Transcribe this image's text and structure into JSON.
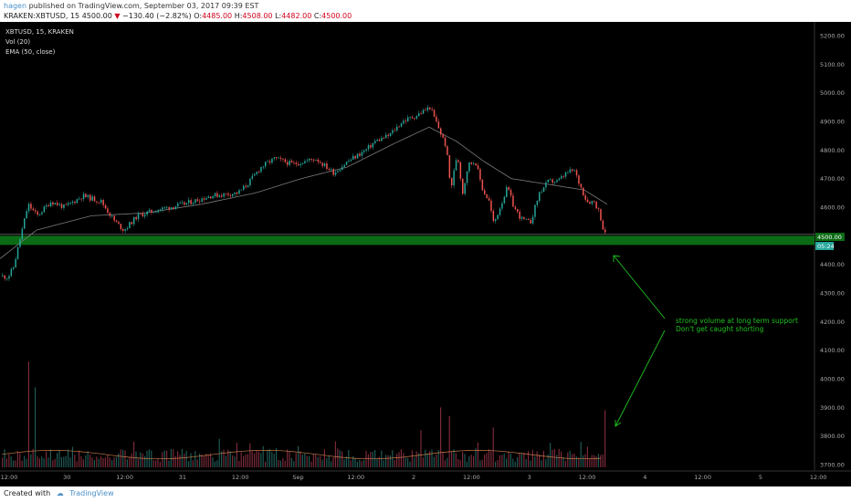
{
  "header": {
    "author": "hagen",
    "published_text": "published on TradingView.com, September 03, 2017 09:39 EST",
    "symbol": "KRAKEN:XBTUSD, 15",
    "price": "4500.00",
    "change": "−130.40 (−2.82%)",
    "ohlc": {
      "o_label": "O:",
      "o": "4485.00",
      "h_label": "H:",
      "h": "4508.00",
      "l_label": "L:",
      "l": "4482.00",
      "c_label": "C:",
      "c": "4500.00"
    }
  },
  "legend": {
    "symbol": "XBTUSD, 15, KRAKEN",
    "volume": "Vol (20)",
    "ema": "EMA (50, close)"
  },
  "annotation": {
    "line1": "strong volume at long term support",
    "line2": "Don't get caught shorting"
  },
  "price_label": "4500.00",
  "time_label": "05:24",
  "footer": {
    "created_with": "Created with",
    "brand": "TradingView"
  },
  "colors": {
    "background": "#000000",
    "up": "#26a69a",
    "down": "#ef5350",
    "support_zone": "#0b6b14",
    "annotation": "#22c122",
    "ema": "#7a7a7a"
  },
  "chart_data": {
    "type": "candlestick",
    "y_ticks": [
      "5200.00",
      "5100.00",
      "5000.00",
      "4900.00",
      "4800.00",
      "4700.00",
      "4600.00",
      "4500.00",
      "4400.00",
      "4300.00",
      "4200.00",
      "4100.00",
      "4000.00",
      "3900.00",
      "3800.00",
      "3700.00"
    ],
    "ylim": [
      3680,
      5240
    ],
    "x_ticks": [
      "12:00",
      "30",
      "12:00",
      "31",
      "12:00",
      "Sep",
      "12:00",
      "2",
      "12:00",
      "3",
      "12:00",
      "4",
      "12:00",
      "5",
      "12:00"
    ],
    "support_zone": [
      4468,
      4500
    ],
    "keypoints": [
      [
        0,
        4360
      ],
      [
        8,
        4355
      ],
      [
        14,
        4390
      ],
      [
        22,
        4500
      ],
      [
        30,
        4610
      ],
      [
        40,
        4570
      ],
      [
        55,
        4620
      ],
      [
        70,
        4600
      ],
      [
        90,
        4640
      ],
      [
        110,
        4620
      ],
      [
        125,
        4550
      ],
      [
        135,
        4520
      ],
      [
        150,
        4570
      ],
      [
        170,
        4590
      ],
      [
        200,
        4610
      ],
      [
        230,
        4640
      ],
      [
        260,
        4650
      ],
      [
        270,
        4680
      ],
      [
        285,
        4740
      ],
      [
        300,
        4770
      ],
      [
        320,
        4750
      ],
      [
        345,
        4770
      ],
      [
        365,
        4720
      ],
      [
        380,
        4760
      ],
      [
        400,
        4800
      ],
      [
        410,
        4830
      ],
      [
        425,
        4850
      ],
      [
        440,
        4900
      ],
      [
        455,
        4920
      ],
      [
        465,
        4940
      ],
      [
        470,
        4950
      ],
      [
        478,
        4890
      ],
      [
        488,
        4810
      ],
      [
        493,
        4660
      ],
      [
        500,
        4790
      ],
      [
        506,
        4650
      ],
      [
        512,
        4750
      ],
      [
        520,
        4760
      ],
      [
        528,
        4660
      ],
      [
        535,
        4620
      ],
      [
        540,
        4540
      ],
      [
        548,
        4610
      ],
      [
        555,
        4670
      ],
      [
        562,
        4600
      ],
      [
        570,
        4560
      ],
      [
        580,
        4545
      ],
      [
        590,
        4650
      ],
      [
        600,
        4690
      ],
      [
        610,
        4690
      ],
      [
        620,
        4720
      ],
      [
        628,
        4730
      ],
      [
        634,
        4680
      ],
      [
        642,
        4620
      ],
      [
        650,
        4620
      ],
      [
        656,
        4580
      ],
      [
        660,
        4520
      ],
      [
        664,
        4490
      ]
    ],
    "ema_points": [
      [
        0,
        4420
      ],
      [
        40,
        4520
      ],
      [
        100,
        4570
      ],
      [
        160,
        4580
      ],
      [
        220,
        4610
      ],
      [
        280,
        4650
      ],
      [
        330,
        4700
      ],
      [
        380,
        4740
      ],
      [
        430,
        4820
      ],
      [
        470,
        4880
      ],
      [
        500,
        4830
      ],
      [
        530,
        4760
      ],
      [
        560,
        4700
      ],
      [
        600,
        4680
      ],
      [
        640,
        4660
      ],
      [
        665,
        4610
      ]
    ],
    "volume_spikes": [
      [
        30,
        4060
      ],
      [
        37,
        3970
      ],
      [
        240,
        3790
      ],
      [
        460,
        3820
      ],
      [
        482,
        3900
      ],
      [
        492,
        3870
      ],
      [
        540,
        3830
      ],
      [
        663,
        3890
      ]
    ]
  }
}
